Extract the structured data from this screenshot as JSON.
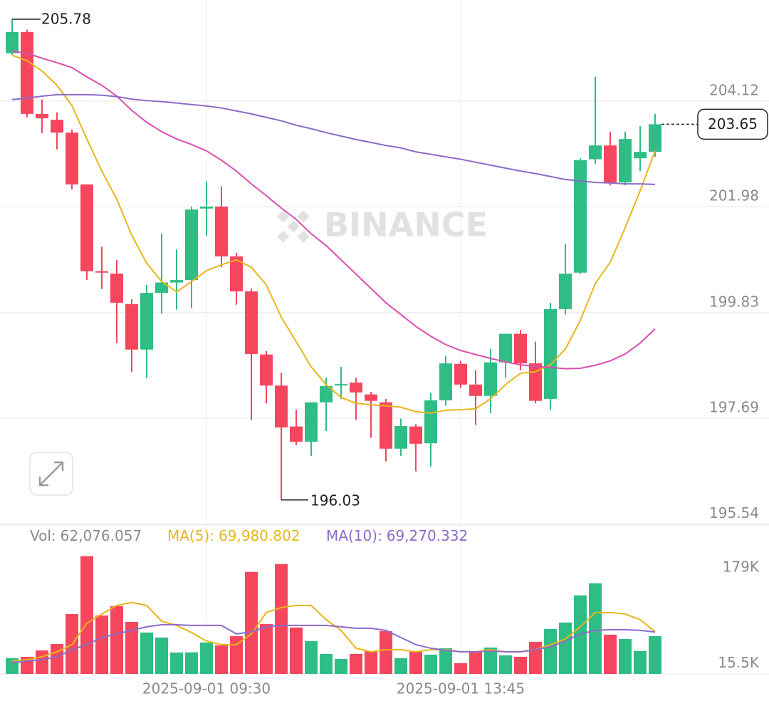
{
  "chart_data": [
    {
      "type": "candlestick",
      "watermark": "BINANCE",
      "categories": [
        null,
        null,
        null,
        null,
        null,
        null,
        null,
        null,
        null,
        null,
        null,
        null,
        null,
        "2025-09-01 09:30",
        null,
        null,
        null,
        null,
        null,
        null,
        null,
        null,
        null,
        null,
        null,
        null,
        null,
        null,
        null,
        null,
        "2025-09-01 13:45",
        null,
        null,
        null,
        null,
        null,
        null,
        null,
        null,
        null,
        null,
        null,
        null,
        null
      ],
      "open": [
        205.09,
        205.52,
        203.86,
        203.74,
        203.48,
        202.43,
        200.67,
        200.62,
        200.0,
        199.08,
        200.23,
        200.44,
        200.49,
        201.94,
        201.98,
        200.97,
        200.26,
        198.98,
        198.35,
        197.52,
        197.21,
        198.01,
        198.37,
        198.41,
        198.17,
        198.01,
        197.07,
        197.52,
        197.18,
        198.05,
        198.79,
        198.37,
        198.14,
        198.82,
        199.4,
        198.8,
        198.08,
        199.9,
        200.64,
        202.94,
        203.22,
        202.47,
        202.96,
        203.09
      ],
      "high": [
        205.78,
        205.57,
        204.15,
        203.89,
        203.54,
        202.43,
        201.17,
        200.9,
        200.1,
        200.39,
        201.43,
        201.11,
        201.98,
        202.49,
        202.39,
        201.04,
        200.32,
        199.05,
        198.61,
        197.86,
        198.01,
        198.51,
        198.73,
        198.51,
        198.22,
        198.08,
        197.68,
        197.57,
        198.2,
        198.95,
        198.85,
        198.66,
        199.09,
        199.4,
        199.48,
        199.24,
        200.03,
        201.23,
        202.96,
        204.61,
        203.5,
        203.5,
        203.61,
        203.86
      ],
      "low": [
        205.06,
        203.79,
        203.47,
        203.14,
        202.33,
        200.49,
        200.31,
        199.21,
        198.63,
        198.5,
        199.81,
        199.89,
        199.92,
        201.39,
        200.75,
        199.99,
        197.65,
        197.99,
        196.03,
        197.14,
        196.92,
        197.43,
        198.08,
        197.65,
        197.29,
        196.81,
        196.92,
        196.61,
        196.71,
        197.94,
        198.3,
        197.55,
        197.79,
        198.51,
        198.66,
        197.99,
        197.86,
        199.79,
        200.61,
        202.85,
        202.41,
        202.41,
        202.7,
        202.99
      ],
      "close": [
        205.52,
        203.86,
        203.77,
        203.48,
        202.43,
        200.67,
        200.64,
        200.03,
        199.08,
        200.23,
        200.44,
        200.49,
        201.92,
        201.98,
        200.97,
        200.26,
        198.99,
        198.35,
        197.5,
        197.21,
        198.01,
        198.34,
        198.38,
        198.21,
        198.04,
        197.07,
        197.53,
        197.17,
        198.05,
        198.8,
        198.37,
        198.14,
        198.82,
        199.4,
        198.8,
        198.04,
        199.9,
        200.62,
        202.92,
        203.22,
        202.47,
        203.35,
        203.09,
        203.65
      ],
      "up_color": "#2ebd85",
      "down_color": "#f6465d",
      "ylim": [
        195.55,
        206.17
      ],
      "yticks": [
        195.54,
        197.69,
        199.83,
        201.98,
        204.12
      ],
      "grid": true,
      "series": [
        {
          "color": "#e8b51a",
          "values": [
            205.05,
            204.94,
            204.73,
            204.44,
            204.03,
            203.35,
            202.7,
            202.13,
            201.4,
            200.83,
            200.46,
            200.25,
            200.46,
            200.68,
            200.8,
            200.9,
            200.75,
            200.39,
            199.74,
            199.24,
            198.73,
            198.37,
            198.11,
            197.99,
            197.96,
            197.94,
            197.91,
            197.82,
            197.79,
            197.85,
            197.86,
            197.88,
            198.08,
            198.37,
            198.6,
            198.63,
            198.77,
            199.09,
            199.67,
            200.42,
            200.85,
            201.55,
            202.3,
            203.11
          ]
        },
        {
          "color": "#d94fb0",
          "values": [
            205.13,
            205.09,
            204.99,
            204.9,
            204.8,
            204.61,
            204.44,
            204.22,
            203.93,
            203.69,
            203.5,
            203.35,
            203.24,
            203.11,
            202.92,
            202.7,
            202.44,
            202.2,
            201.95,
            201.72,
            201.43,
            201.19,
            200.9,
            200.61,
            200.32,
            200.03,
            199.79,
            199.55,
            199.35,
            199.18,
            199.06,
            198.98,
            198.9,
            198.83,
            198.77,
            198.74,
            198.72,
            198.69,
            198.7,
            198.76,
            198.85,
            198.99,
            199.21,
            199.5
          ]
        },
        {
          "color": "#8c6bc8",
          "values": [
            204.15,
            204.18,
            204.22,
            204.25,
            204.25,
            204.25,
            204.24,
            204.21,
            204.16,
            204.13,
            204.11,
            204.08,
            204.05,
            204.02,
            203.98,
            203.92,
            203.86,
            203.79,
            203.72,
            203.63,
            203.56,
            203.48,
            203.41,
            203.34,
            203.28,
            203.22,
            203.17,
            203.09,
            203.04,
            202.99,
            202.94,
            202.88,
            202.82,
            202.76,
            202.7,
            202.65,
            202.59,
            202.53,
            202.5,
            202.47,
            202.46,
            202.44,
            202.44,
            202.43
          ]
        }
      ]
    },
    {
      "type": "bar",
      "name": "Vol:",
      "color": "#999999",
      "values": [
        24400,
        26800,
        37800,
        48800,
        100000,
        198900,
        97600,
        113500,
        86600,
        68300,
        59800,
        34200,
        34500,
        51200,
        46400,
        62200,
        172000,
        83000,
        185400,
        76900,
        53700,
        31700,
        23200,
        31900,
        36600,
        70800,
        24600,
        35400,
        30500,
        41500,
        15900,
        35600,
        42700,
        29300,
        26900,
        52500,
        74400,
        85400,
        131800,
        152500,
        64700,
        57300,
        36800,
        62076.057
      ],
      "value_labels": [
        null,
        null,
        null,
        null,
        null,
        null,
        null,
        null,
        null,
        null,
        null,
        null,
        null,
        null,
        null,
        null,
        null,
        null,
        null,
        null,
        null,
        null,
        null,
        null,
        null,
        null,
        null,
        null,
        null,
        null,
        null,
        null,
        null,
        null,
        null,
        null,
        null,
        null,
        null,
        null,
        null,
        null,
        null,
        "62,076.057"
      ],
      "ylim": [
        0,
        218000
      ],
      "yticks": [
        {
          "value": 15500,
          "label": "15.5K"
        },
        {
          "value": 179000,
          "label": "179K"
        }
      ],
      "series": [
        {
          "name": "MA(5):",
          "color": "#e8b51a",
          "values": [
            19500,
            22000,
            26800,
            35400,
            47600,
            84200,
            100000,
            114700,
            119600,
            114700,
            87800,
            80500,
            68300,
            53700,
            47600,
            47600,
            65900,
            102500,
            111000,
            114700,
            114700,
            90300,
            72000,
            41500,
            35400,
            39000,
            39000,
            35400,
            39000,
            39000,
            35400,
            35400,
            39000,
            35400,
            35400,
            39000,
            47600,
            57300,
            78100,
            102500,
            102500,
            100000,
            90300,
            69980.802
          ],
          "value_labels": [
            null,
            null,
            null,
            null,
            null,
            null,
            null,
            null,
            null,
            null,
            null,
            null,
            null,
            null,
            null,
            null,
            null,
            null,
            null,
            null,
            null,
            null,
            null,
            null,
            null,
            null,
            null,
            null,
            null,
            null,
            null,
            null,
            null,
            null,
            null,
            null,
            null,
            null,
            null,
            null,
            null,
            null,
            null,
            "69,980.802"
          ]
        },
        {
          "name": "MA(10):",
          "color": "#8c6bc8",
          "values": [
            17100,
            19500,
            22000,
            26800,
            39000,
            47600,
            59800,
            65900,
            72000,
            78100,
            81700,
            81700,
            80500,
            80500,
            80500,
            65900,
            69500,
            78100,
            80500,
            80500,
            80500,
            80500,
            78100,
            75600,
            75600,
            72000,
            59800,
            47600,
            41500,
            37800,
            35400,
            35400,
            36600,
            35400,
            35400,
            39000,
            43900,
            53700,
            65900,
            72000,
            73200,
            73200,
            72000,
            69270.332
          ],
          "value_labels": [
            null,
            null,
            null,
            null,
            null,
            null,
            null,
            null,
            null,
            null,
            null,
            null,
            null,
            null,
            null,
            null,
            null,
            null,
            null,
            null,
            null,
            null,
            null,
            null,
            null,
            null,
            null,
            null,
            null,
            null,
            null,
            null,
            null,
            null,
            null,
            null,
            null,
            null,
            null,
            null,
            null,
            null,
            null,
            "69,270.332"
          ]
        }
      ]
    }
  ]
}
